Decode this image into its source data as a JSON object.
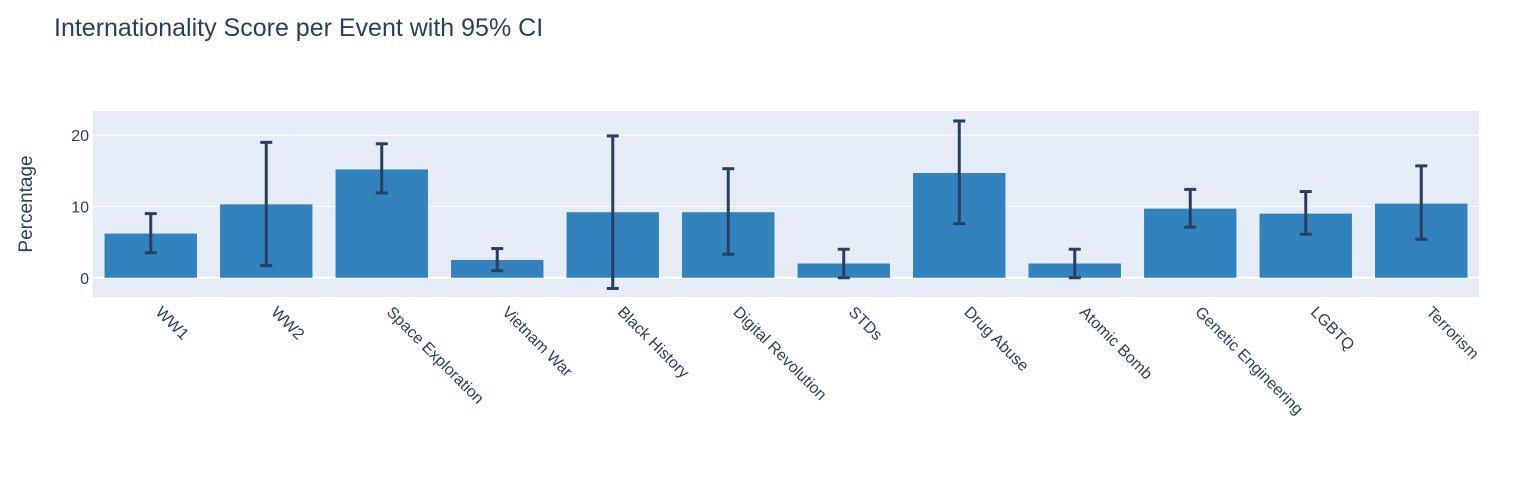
{
  "chart_data": {
    "type": "bar",
    "title": "Internationality Score per Event with 95% CI",
    "xlabel": "",
    "ylabel": "Percentage",
    "categories": [
      "WW1",
      "WW2",
      "Space Exploration",
      "Vietnam War",
      "Black History",
      "Digital Revolution",
      "STDs",
      "Drug Abuse",
      "Atomic Bomb",
      "Genetic Engineering",
      "LGBTQ",
      "Terrorism"
    ],
    "values": [
      6.2,
      10.3,
      15.2,
      2.5,
      9.2,
      9.2,
      2.0,
      14.7,
      2.0,
      9.7,
      9.0,
      10.4
    ],
    "error_low": [
      3.5,
      1.7,
      11.9,
      1.0,
      -1.5,
      3.3,
      0.0,
      7.6,
      0.0,
      7.1,
      6.1,
      5.4
    ],
    "error_high": [
      9.0,
      19.0,
      18.8,
      4.1,
      19.9,
      15.3,
      4.0,
      22.0,
      4.0,
      12.4,
      12.1,
      15.7
    ],
    "ylim": [
      -2.7,
      23.4
    ],
    "yticks": [
      0,
      10,
      20
    ],
    "grid": true,
    "colors": {
      "bar": "#3182bd",
      "error": "#2a3f5f",
      "plot_bg": "#e5ecf6",
      "grid": "#ffffff",
      "text": "#2a3f5f"
    }
  }
}
